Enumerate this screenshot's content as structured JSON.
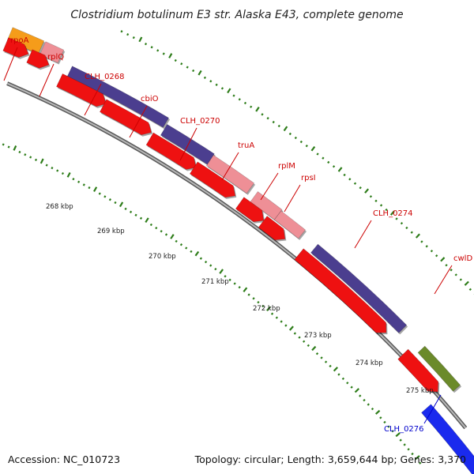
{
  "title": "Clostridium botulinum E3 str. Alaska E43, complete genome",
  "accession": "Accession: NC_010723",
  "summary": "Topology: circular; Length: 3,659,644 bp; Genes: 3,370",
  "colors": {
    "label_red": "#cc0000",
    "label_blue": "#0000cc",
    "leader_red": "#cc0000",
    "leader_blue": "#0000cc",
    "cds_red": "#ee1111",
    "rpoA_orange": "#f59c1a",
    "rpl_pink": "#ee8f96",
    "purple": "#4b3e8f",
    "olive": "#6b8a2a",
    "blue": "#1a2aee",
    "backbone": "#888888",
    "tick_green": "#2e7d1a"
  },
  "gene_labels": [
    "rpoA",
    "rplQ",
    "CLH_0268",
    "cbiO",
    "CLH_0270",
    "truA",
    "rplM",
    "rpsI",
    "CLH_0274",
    "cwlD",
    "CLH_0276"
  ],
  "kbp_labels": [
    "268 kbp",
    "269 kbp",
    "270 kbp",
    "271 kbp",
    "272 kbp",
    "273 kbp",
    "274 kbp",
    "275 kbp"
  ]
}
